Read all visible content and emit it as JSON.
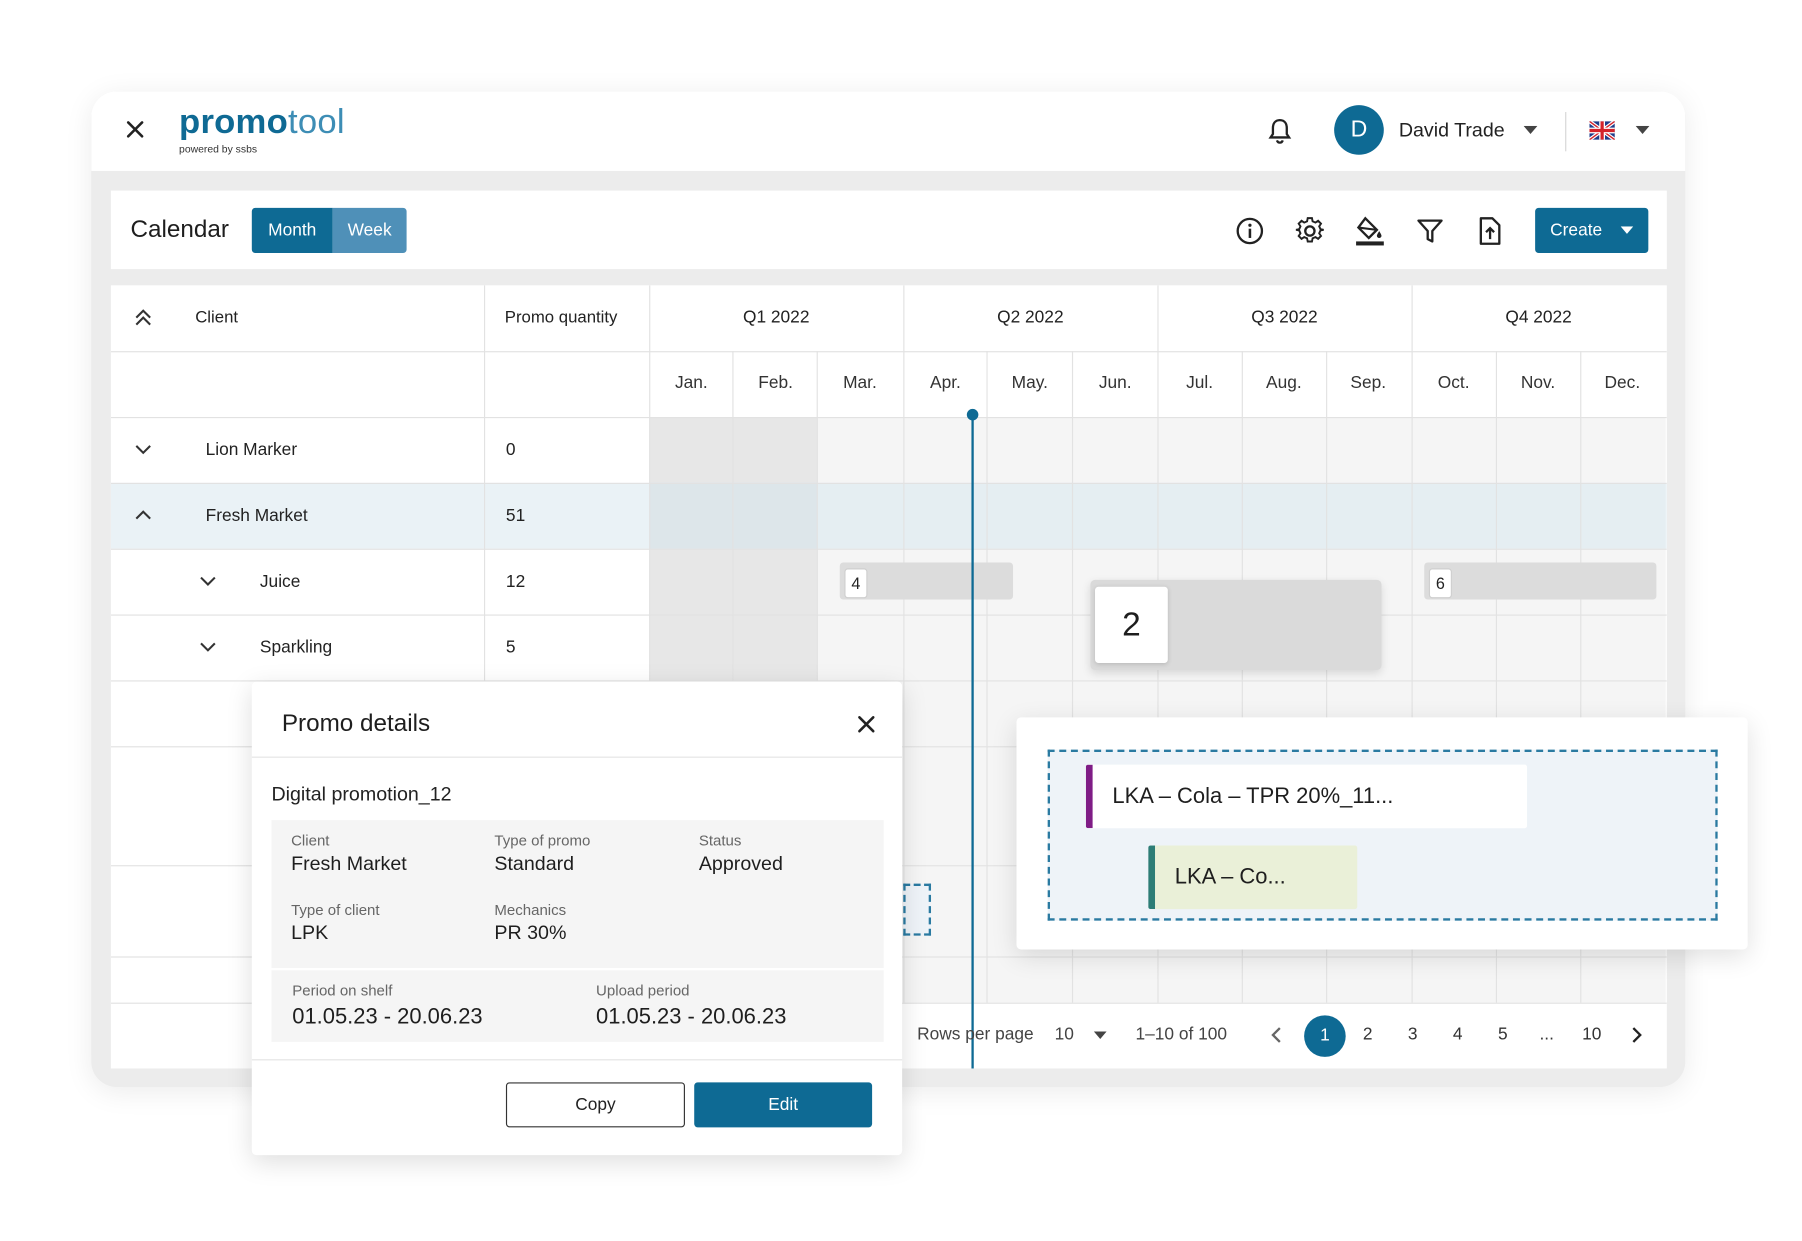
{
  "app": {
    "logo_main_bold": "promo",
    "logo_main_light": "tool",
    "logo_sub": "powered by ssbs",
    "user_initial": "D",
    "user_name": "David Trade",
    "language_flag": "uk-flag"
  },
  "toolbar": {
    "title": "Calendar",
    "view_month": "Month",
    "view_week": "Week",
    "create_label": "Create",
    "icons": [
      "info-icon",
      "gear-icon",
      "paint-bucket-icon",
      "filter-icon",
      "export-icon"
    ]
  },
  "table": {
    "col_client": "Client",
    "col_promo_quantity": "Promo quantity",
    "quarters": [
      "Q1 2022",
      "Q2 2022",
      "Q3 2022",
      "Q4 2022"
    ],
    "months": [
      "Jan.",
      "Feb.",
      "Mar.",
      "Apr.",
      "May.",
      "Jun.",
      "Jul.",
      "Aug.",
      "Sep.",
      "Oct.",
      "Nov.",
      "Dec."
    ],
    "rows": [
      {
        "label": "Lion Marker",
        "qty": "0"
      },
      {
        "label": "Fresh Market",
        "qty": "51"
      },
      {
        "label": "Juice",
        "qty": "12"
      },
      {
        "label": "Sparkling",
        "qty": "5"
      }
    ],
    "bars": [
      {
        "count": "4"
      },
      {
        "count": "6"
      }
    ],
    "dragged_count": "2",
    "highlight_color": "#eaf2f6",
    "accent_color": "#0e6a94"
  },
  "pagination": {
    "rows_per_page_label": "Rows per page",
    "rows_per_page_value": "10",
    "range": "1–10 of 100",
    "pages": [
      "1",
      "2",
      "3",
      "4",
      "5",
      "...",
      "10"
    ],
    "current_page": "1"
  },
  "promo_details": {
    "title": "Promo details",
    "promo_name": "Digital promotion_12",
    "client_label": "Client",
    "client_value": "Fresh Market",
    "type_of_promo_label": "Type of promo",
    "type_of_promo_value": "Standard",
    "status_label": "Status",
    "status_value": "Approved",
    "type_of_client_label": "Type of client",
    "type_of_client_value": "LPK",
    "mechanics_label": "Mechanics",
    "mechanics_value": "PR 30%",
    "period_on_shelf_label": "Period on shelf",
    "period_on_shelf_value": "01.05.23 - 20.06.23",
    "upload_period_label": "Upload period",
    "upload_period_value": "01.05.23 - 20.06.23",
    "copy_label": "Copy",
    "edit_label": "Edit"
  },
  "lka_popover": {
    "item1": "LKA – Cola – TPR 20%_11...",
    "item2": "LKA – Co...",
    "item1_color": "#7f1c86",
    "item2_color": "#2d7d76"
  }
}
